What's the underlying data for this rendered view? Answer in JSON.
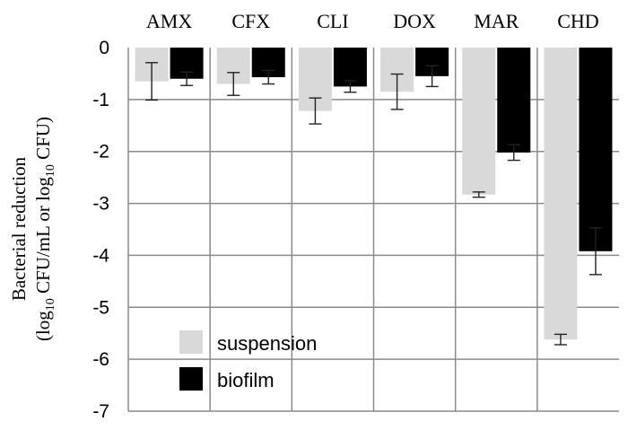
{
  "chart_data": {
    "type": "bar",
    "categories": [
      "AMX",
      "CFX",
      "CLI",
      "DOX",
      "MAR",
      "CHD"
    ],
    "series": [
      {
        "name": "suspension",
        "color": "#d9d9d9",
        "values": [
          -0.65,
          -0.7,
          -1.22,
          -0.85,
          -2.83,
          -5.62
        ],
        "errors": [
          0.36,
          0.22,
          0.25,
          0.34,
          0.05,
          0.1
        ]
      },
      {
        "name": "biofilm",
        "color": "#000000",
        "values": [
          -0.6,
          -0.57,
          -0.75,
          -0.55,
          -2.02,
          -3.92
        ],
        "errors": [
          0.13,
          0.13,
          0.11,
          0.2,
          0.15,
          0.45
        ]
      }
    ],
    "ylabel_line1": "Bacterial reduction",
    "ylabel_line2_pre": "(log",
    "ylabel_line2_sub1": "10",
    "ylabel_line2_mid": " CFU/mL or log",
    "ylabel_line2_sub2": "10",
    "ylabel_line2_post": " CFU)",
    "ylim": [
      -7,
      0
    ],
    "yticks": [
      "0",
      "-1",
      "-2",
      "-3",
      "-4",
      "-5",
      "-6",
      "-7"
    ],
    "grid": true,
    "categories_position": "top",
    "legend_position": "bottom-left"
  }
}
